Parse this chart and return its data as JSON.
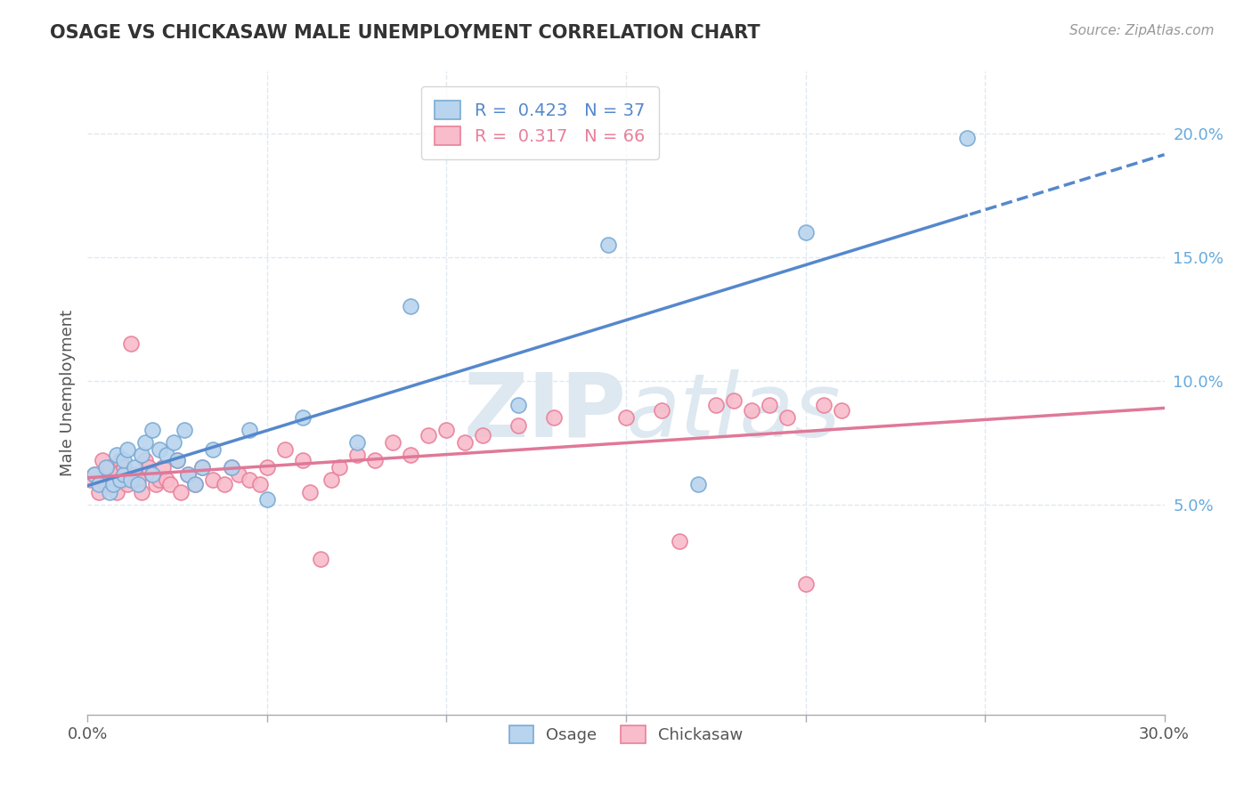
{
  "title": "OSAGE VS CHICKASAW MALE UNEMPLOYMENT CORRELATION CHART",
  "source_text": "Source: ZipAtlas.com",
  "ylabel": "Male Unemployment",
  "xlim": [
    0.0,
    0.3
  ],
  "ylim": [
    -0.035,
    0.225
  ],
  "xtick_major": [
    0.0,
    0.3
  ],
  "xtick_major_labels": [
    "0.0%",
    "30.0%"
  ],
  "xtick_minor": [
    0.05,
    0.1,
    0.15,
    0.2,
    0.25
  ],
  "ytick_positions": [
    0.05,
    0.1,
    0.15,
    0.2
  ],
  "yticklabels": [
    "5.0%",
    "10.0%",
    "15.0%",
    "20.0%"
  ],
  "osage_R": 0.423,
  "osage_N": 37,
  "chickasaw_R": 0.317,
  "chickasaw_N": 66,
  "osage_color": "#b8d4ee",
  "osage_edge_color": "#7aaad4",
  "chickasaw_color": "#f8bccb",
  "chickasaw_edge_color": "#e8809a",
  "osage_line_color": "#5588cc",
  "chickasaw_line_color": "#e07898",
  "watermark_color": "#dde8f0",
  "background_color": "#ffffff",
  "grid_color": "#e0e8f0",
  "title_color": "#333333",
  "source_color": "#999999",
  "ytick_color": "#66aadd",
  "xtick_color": "#555555",
  "ylabel_color": "#555555",
  "osage_x": [
    0.002,
    0.003,
    0.005,
    0.006,
    0.007,
    0.008,
    0.009,
    0.01,
    0.01,
    0.011,
    0.012,
    0.013,
    0.014,
    0.015,
    0.016,
    0.018,
    0.018,
    0.02,
    0.022,
    0.024,
    0.025,
    0.027,
    0.028,
    0.03,
    0.032,
    0.035,
    0.04,
    0.045,
    0.05,
    0.06,
    0.075,
    0.09,
    0.12,
    0.145,
    0.17,
    0.2,
    0.245
  ],
  "osage_y": [
    0.062,
    0.058,
    0.065,
    0.055,
    0.058,
    0.07,
    0.06,
    0.062,
    0.068,
    0.072,
    0.06,
    0.065,
    0.058,
    0.07,
    0.075,
    0.062,
    0.08,
    0.072,
    0.07,
    0.075,
    0.068,
    0.08,
    0.062,
    0.058,
    0.065,
    0.072,
    0.065,
    0.08,
    0.052,
    0.085,
    0.075,
    0.13,
    0.09,
    0.155,
    0.058,
    0.16,
    0.198
  ],
  "chickasaw_x": [
    0.001,
    0.002,
    0.003,
    0.004,
    0.005,
    0.005,
    0.006,
    0.006,
    0.007,
    0.008,
    0.008,
    0.009,
    0.01,
    0.01,
    0.011,
    0.012,
    0.013,
    0.014,
    0.015,
    0.016,
    0.017,
    0.018,
    0.019,
    0.02,
    0.021,
    0.022,
    0.023,
    0.025,
    0.026,
    0.028,
    0.03,
    0.032,
    0.035,
    0.038,
    0.04,
    0.042,
    0.045,
    0.048,
    0.05,
    0.055,
    0.06,
    0.062,
    0.065,
    0.068,
    0.07,
    0.075,
    0.08,
    0.085,
    0.09,
    0.095,
    0.1,
    0.105,
    0.11,
    0.12,
    0.13,
    0.15,
    0.16,
    0.165,
    0.175,
    0.18,
    0.185,
    0.19,
    0.195,
    0.2,
    0.205,
    0.21
  ],
  "chickasaw_y": [
    0.06,
    0.062,
    0.055,
    0.068,
    0.058,
    0.062,
    0.065,
    0.06,
    0.058,
    0.055,
    0.062,
    0.068,
    0.06,
    0.065,
    0.058,
    0.115,
    0.062,
    0.06,
    0.055,
    0.068,
    0.065,
    0.062,
    0.058,
    0.06,
    0.065,
    0.06,
    0.058,
    0.068,
    0.055,
    0.062,
    0.058,
    0.065,
    0.06,
    0.058,
    0.065,
    0.062,
    0.06,
    0.058,
    0.065,
    0.072,
    0.068,
    0.055,
    0.028,
    0.06,
    0.065,
    0.07,
    0.068,
    0.075,
    0.07,
    0.078,
    0.08,
    0.075,
    0.078,
    0.082,
    0.085,
    0.085,
    0.088,
    0.035,
    0.09,
    0.092,
    0.088,
    0.09,
    0.085,
    0.018,
    0.09,
    0.088
  ]
}
